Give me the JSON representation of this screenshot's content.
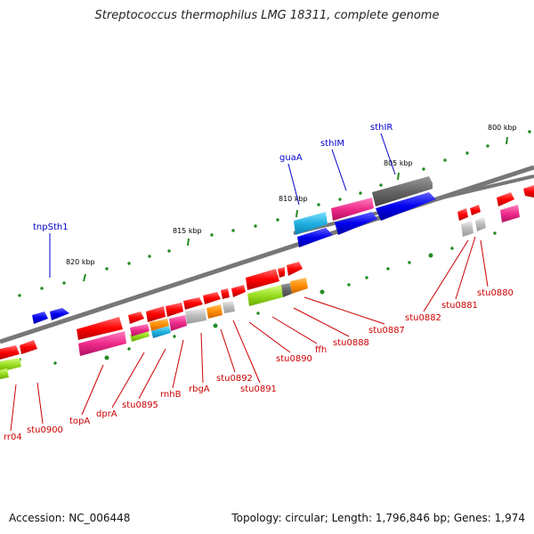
{
  "title": "Streptococcus thermophilus LMG 18311, complete genome",
  "accession": "Accession: NC_006448",
  "summary": "Topology: circular; Length: 1,796,846 bp; Genes: 1,974",
  "scale_labels": [
    "800 kbp",
    "805 kbp",
    "810 kbp",
    "815 kbp",
    "820 kbp"
  ],
  "outer_labels": [
    "sthIR",
    "sthIM",
    "guaA",
    "tnpSth1"
  ],
  "inner_labels": [
    "stu0880",
    "stu0881",
    "stu0882",
    "stu0887",
    "stu0888",
    "ffh",
    "stu0890",
    "stu0891",
    "stu0892",
    "rbgA",
    "rnhB",
    "stu0895",
    "dprA",
    "topA",
    "stu0900",
    "rr04"
  ],
  "colors": {
    "gene": "#ff0000",
    "rna": "#ee2a8a",
    "coding_outer": "#0000ee",
    "tick": "#228b22",
    "backbone": "#808080",
    "outer_label": "#0000cc",
    "inner_label": "#cc0000",
    "pseudo": "#aaaaaa"
  }
}
